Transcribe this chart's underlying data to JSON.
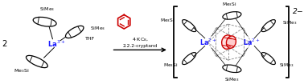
{
  "bg_color": "#ffffff",
  "red_color": "#cc0000",
  "blue_color": "#1a1aff",
  "black": "#000000",
  "gray_dash": "#888888",
  "fig_width": 3.78,
  "fig_height": 1.05,
  "dpi": 100,
  "label_2": "2",
  "label_la3": "La$^{3+}$",
  "label_la2_left": "La$^{2+}$",
  "label_la2_right": "La$^{2+}$",
  "label_thf": "THF",
  "label_4kc8": "4 KC$_8$,",
  "label_cryptand": "2.2.2-cryptand",
  "charge_label": "2$-$",
  "fs": 5.2,
  "fs_small": 4.5
}
